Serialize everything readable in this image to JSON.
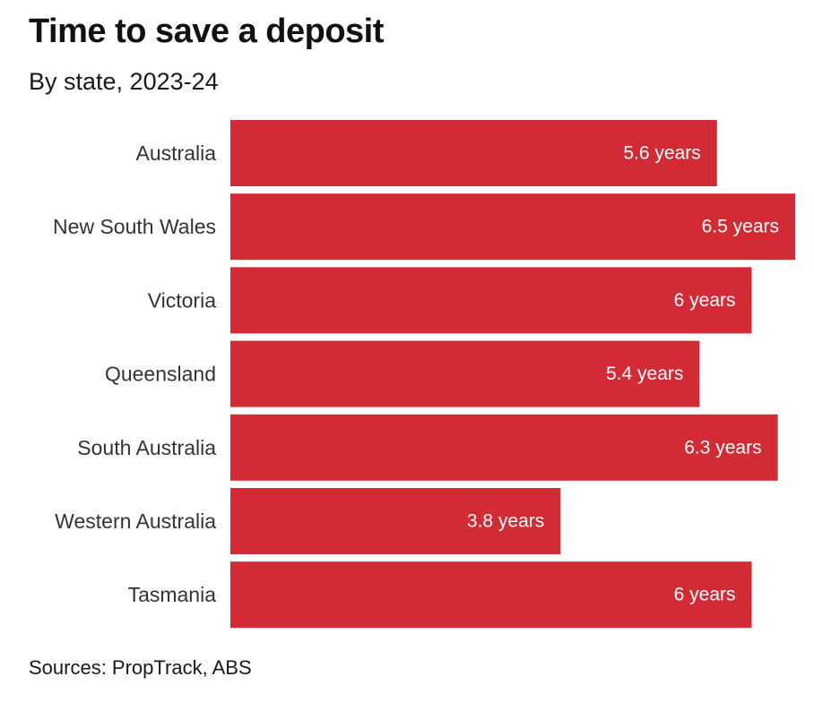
{
  "title": "Time to save a deposit",
  "subtitle": "By state, 2023-24",
  "source": "Sources: PropTrack, ABS",
  "colors": {
    "bar": "#d22b35",
    "bar_label": "#ffffff",
    "category_label": "#333333"
  },
  "chart_data": {
    "type": "bar",
    "orientation": "horizontal",
    "title": "Time to save a deposit",
    "subtitle": "By state, 2023-24",
    "categories": [
      "Australia",
      "New South Wales",
      "Victoria",
      "Queensland",
      "South Australia",
      "Western Australia",
      "Tasmania"
    ],
    "values": [
      5.6,
      6.5,
      6.0,
      5.4,
      6.3,
      3.8,
      6.0
    ],
    "value_labels": [
      "5.6 years",
      "6.5 years",
      "6 years",
      "5.4 years",
      "6.3 years",
      "3.8 years",
      "6 years"
    ],
    "unit": "years",
    "xlim": [
      0,
      6.5
    ],
    "grid": false,
    "legend": "none"
  }
}
